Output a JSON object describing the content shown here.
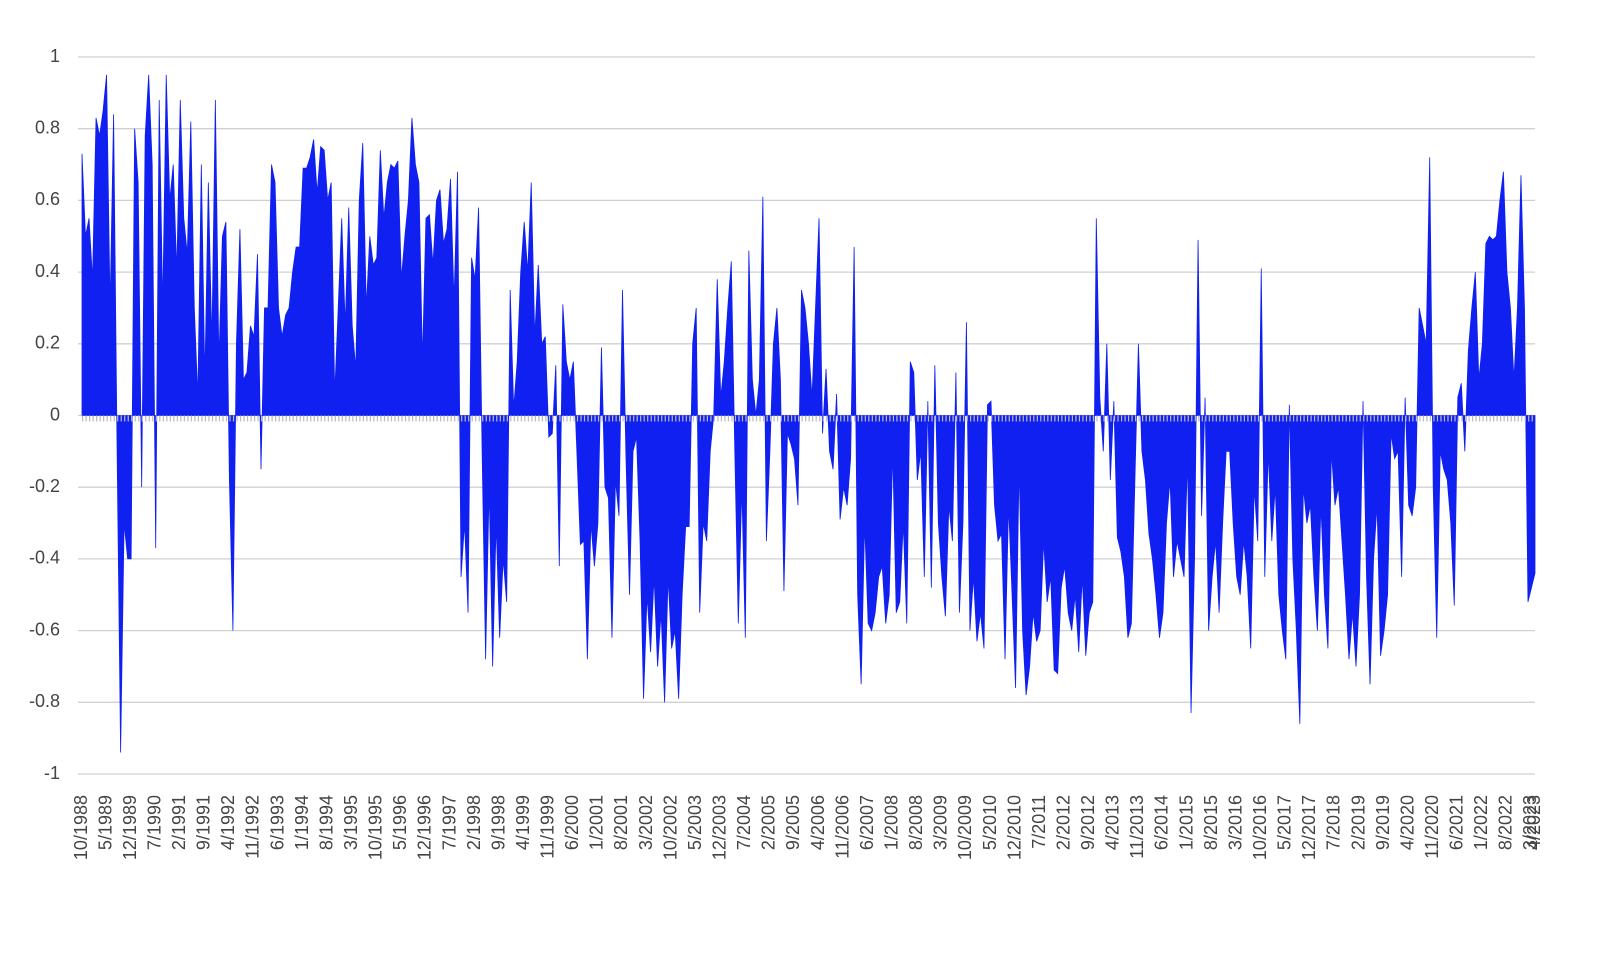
{
  "chart_data": {
    "type": "area",
    "color": "#1020f0",
    "grid": true,
    "ylim": [
      -1,
      1
    ],
    "yticks": [
      1,
      0.8,
      0.6,
      0.4,
      0.2,
      0,
      -0.2,
      -0.4,
      -0.6,
      -0.8,
      -1
    ],
    "categories": [
      "10/1988",
      null,
      null,
      null,
      null,
      null,
      null,
      "5/1989",
      null,
      null,
      null,
      null,
      null,
      null,
      "12/1989",
      null,
      null,
      null,
      null,
      null,
      null,
      "7/1990",
      null,
      null,
      null,
      null,
      null,
      null,
      "2/1991",
      null,
      null,
      null,
      null,
      null,
      null,
      "9/1991",
      null,
      null,
      null,
      null,
      null,
      null,
      "4/1992",
      null,
      null,
      null,
      null,
      null,
      null,
      "11/1992",
      null,
      null,
      null,
      null,
      null,
      null,
      "6/1993",
      null,
      null,
      null,
      null,
      null,
      null,
      "1/1994",
      null,
      null,
      null,
      null,
      null,
      null,
      "8/1994",
      null,
      null,
      null,
      null,
      null,
      null,
      "3/1995",
      null,
      null,
      null,
      null,
      null,
      null,
      "10/1995",
      null,
      null,
      null,
      null,
      null,
      null,
      "5/1996",
      null,
      null,
      null,
      null,
      null,
      null,
      "12/1996",
      null,
      null,
      null,
      null,
      null,
      null,
      "7/1997",
      null,
      null,
      null,
      null,
      null,
      null,
      "2/1998",
      null,
      null,
      null,
      null,
      null,
      null,
      "9/1998",
      null,
      null,
      null,
      null,
      null,
      null,
      "4/1999",
      null,
      null,
      null,
      null,
      null,
      null,
      "11/1999",
      null,
      null,
      null,
      null,
      null,
      null,
      "6/2000",
      null,
      null,
      null,
      null,
      null,
      null,
      "1/2001",
      null,
      null,
      null,
      null,
      null,
      null,
      "8/2001",
      null,
      null,
      null,
      null,
      null,
      null,
      "3/2002",
      null,
      null,
      null,
      null,
      null,
      null,
      "10/2002",
      null,
      null,
      null,
      null,
      null,
      null,
      "5/2003",
      null,
      null,
      null,
      null,
      null,
      null,
      "12/2003",
      null,
      null,
      null,
      null,
      null,
      null,
      "7/2004",
      null,
      null,
      null,
      null,
      null,
      null,
      "2/2005",
      null,
      null,
      null,
      null,
      null,
      null,
      "9/2005",
      null,
      null,
      null,
      null,
      null,
      null,
      "4/2006",
      null,
      null,
      null,
      null,
      null,
      null,
      "11/2006",
      null,
      null,
      null,
      null,
      null,
      null,
      "6/2007",
      null,
      null,
      null,
      null,
      null,
      null,
      "1/2008",
      null,
      null,
      null,
      null,
      null,
      null,
      "8/2008",
      null,
      null,
      null,
      null,
      null,
      null,
      "3/2009",
      null,
      null,
      null,
      null,
      null,
      null,
      "10/2009",
      null,
      null,
      null,
      null,
      null,
      null,
      "5/2010",
      null,
      null,
      null,
      null,
      null,
      null,
      "12/2010",
      null,
      null,
      null,
      null,
      null,
      null,
      "7/2011",
      null,
      null,
      null,
      null,
      null,
      null,
      "2/2012",
      null,
      null,
      null,
      null,
      null,
      null,
      "9/2012",
      null,
      null,
      null,
      null,
      null,
      null,
      "4/2013",
      null,
      null,
      null,
      null,
      null,
      null,
      "11/2013",
      null,
      null,
      null,
      null,
      null,
      null,
      "6/2014",
      null,
      null,
      null,
      null,
      null,
      null,
      "1/2015",
      null,
      null,
      null,
      null,
      null,
      null,
      "8/2015",
      null,
      null,
      null,
      null,
      null,
      null,
      "3/2016",
      null,
      null,
      null,
      null,
      null,
      null,
      "10/2016",
      null,
      null,
      null,
      null,
      null,
      null,
      "5/2017",
      null,
      null,
      null,
      null,
      null,
      null,
      "12/2017",
      null,
      null,
      null,
      null,
      null,
      null,
      "7/2018",
      null,
      null,
      null,
      null,
      null,
      null,
      "2/2019",
      null,
      null,
      null,
      null,
      null,
      null,
      "9/2019",
      null,
      null,
      null,
      null,
      null,
      null,
      "4/2020",
      null,
      null,
      null,
      null,
      null,
      null,
      "11/2020",
      null,
      null,
      null,
      null,
      null,
      null,
      "6/2021",
      null,
      null,
      null,
      null,
      null,
      null,
      "1/2022",
      null,
      null,
      null,
      null,
      null,
      null,
      "8/2022",
      null,
      null,
      null,
      null,
      null,
      null,
      "3/2023",
      "4/2023"
    ],
    "values": [
      0.73,
      0.5,
      0.55,
      0.38,
      0.83,
      0.78,
      0.85,
      0.95,
      0.3,
      0.84,
      -0.1,
      -0.94,
      -0.3,
      -0.4,
      -0.4,
      0.8,
      0.65,
      -0.2,
      0.78,
      0.95,
      0.7,
      -0.37,
      0.88,
      0.3,
      0.95,
      0.6,
      0.7,
      0.4,
      0.88,
      0.55,
      0.45,
      0.82,
      0.3,
      0.05,
      0.7,
      0.1,
      0.65,
      0.2,
      0.88,
      0.15,
      0.5,
      0.54,
      -0.18,
      -0.6,
      0.2,
      0.52,
      0.1,
      0.12,
      0.25,
      0.22,
      0.45,
      -0.15,
      0.3,
      0.3,
      0.7,
      0.65,
      0.3,
      0.22,
      0.28,
      0.3,
      0.4,
      0.47,
      0.47,
      0.69,
      0.69,
      0.72,
      0.77,
      0.62,
      0.75,
      0.74,
      0.6,
      0.65,
      0.06,
      0.3,
      0.55,
      0.25,
      0.58,
      0.25,
      0.13,
      0.6,
      0.76,
      0.3,
      0.5,
      0.42,
      0.44,
      0.74,
      0.55,
      0.65,
      0.7,
      0.69,
      0.71,
      0.38,
      0.5,
      0.6,
      0.83,
      0.7,
      0.65,
      0.15,
      0.55,
      0.56,
      0.42,
      0.6,
      0.63,
      0.48,
      0.52,
      0.66,
      0.32,
      0.68,
      -0.45,
      -0.3,
      -0.55,
      0.44,
      0.38,
      0.58,
      -0.1,
      -0.68,
      -0.2,
      -0.7,
      -0.3,
      -0.62,
      -0.4,
      -0.52,
      0.35,
      0.02,
      0.15,
      0.4,
      0.54,
      0.4,
      0.65,
      0.22,
      0.42,
      0.2,
      0.22,
      -0.06,
      -0.05,
      0.14,
      -0.42,
      0.31,
      0.15,
      0.1,
      0.15,
      -0.1,
      -0.36,
      -0.35,
      -0.68,
      -0.3,
      -0.42,
      -0.3,
      0.19,
      -0.2,
      -0.23,
      -0.62,
      -0.18,
      -0.28,
      0.35,
      -0.12,
      -0.5,
      -0.1,
      -0.06,
      -0.35,
      -0.79,
      -0.5,
      -0.66,
      -0.45,
      -0.7,
      -0.55,
      -0.8,
      -0.45,
      -0.65,
      -0.6,
      -0.79,
      -0.5,
      -0.31,
      -0.31,
      0.2,
      0.3,
      -0.55,
      -0.3,
      -0.35,
      -0.1,
      0.0,
      0.38,
      0.05,
      0.15,
      0.3,
      0.43,
      -0.1,
      -0.58,
      -0.2,
      -0.62,
      0.46,
      0.1,
      0.0,
      0.1,
      0.61,
      -0.35,
      -0.1,
      0.2,
      0.3,
      0.1,
      -0.49,
      -0.05,
      -0.08,
      -0.12,
      -0.25,
      0.35,
      0.3,
      0.2,
      0.05,
      0.3,
      0.55,
      -0.05,
      0.13,
      -0.1,
      -0.15,
      0.06,
      -0.29,
      -0.2,
      -0.25,
      -0.12,
      0.47,
      -0.5,
      -0.75,
      -0.3,
      -0.58,
      -0.6,
      -0.55,
      -0.45,
      -0.42,
      -0.58,
      -0.5,
      -0.1,
      -0.55,
      -0.52,
      -0.3,
      -0.58,
      0.15,
      0.12,
      -0.18,
      -0.1,
      -0.45,
      0.04,
      -0.48,
      0.14,
      -0.3,
      -0.45,
      -0.56,
      -0.25,
      -0.35,
      0.12,
      -0.55,
      -0.3,
      0.26,
      -0.6,
      -0.45,
      -0.63,
      -0.55,
      -0.65,
      0.03,
      0.04,
      -0.25,
      -0.35,
      -0.33,
      -0.68,
      -0.25,
      -0.5,
      -0.76,
      -0.14,
      -0.6,
      -0.78,
      -0.7,
      -0.55,
      -0.63,
      -0.6,
      -0.35,
      -0.52,
      -0.45,
      -0.71,
      -0.72,
      -0.48,
      -0.42,
      -0.55,
      -0.6,
      -0.5,
      -0.66,
      -0.45,
      -0.67,
      -0.55,
      -0.52,
      0.55,
      0.05,
      -0.1,
      0.2,
      -0.18,
      0.04,
      -0.34,
      -0.38,
      -0.45,
      -0.62,
      -0.58,
      -0.18,
      0.2,
      -0.1,
      -0.18,
      -0.33,
      -0.4,
      -0.5,
      -0.62,
      -0.55,
      -0.3,
      -0.18,
      -0.45,
      -0.35,
      -0.4,
      -0.45,
      -0.12,
      -0.83,
      -0.4,
      0.49,
      -0.28,
      0.05,
      -0.6,
      -0.45,
      -0.35,
      -0.55,
      -0.3,
      -0.1,
      -0.1,
      -0.3,
      -0.45,
      -0.5,
      -0.35,
      -0.45,
      -0.65,
      -0.2,
      -0.35,
      0.41,
      -0.45,
      -0.1,
      -0.35,
      -0.2,
      -0.5,
      -0.6,
      -0.68,
      0.03,
      -0.4,
      -0.6,
      -0.86,
      -0.2,
      -0.3,
      -0.25,
      -0.45,
      -0.6,
      -0.25,
      -0.5,
      -0.65,
      -0.1,
      -0.25,
      -0.2,
      -0.35,
      -0.5,
      -0.68,
      -0.55,
      -0.7,
      -0.5,
      0.04,
      -0.45,
      -0.75,
      -0.4,
      -0.25,
      -0.67,
      -0.6,
      -0.5,
      -0.05,
      -0.12,
      -0.1,
      -0.45,
      0.05,
      -0.25,
      -0.28,
      -0.2,
      0.3,
      0.25,
      0.2,
      0.72,
      -0.2,
      -0.62,
      -0.1,
      -0.15,
      -0.18,
      -0.3,
      -0.53,
      0.05,
      0.09,
      -0.1,
      0.18,
      0.3,
      0.4,
      0.1,
      0.2,
      0.48,
      0.5,
      0.49,
      0.5,
      0.6,
      0.68,
      0.4,
      0.3,
      0.1,
      0.3,
      0.67,
      0.3,
      -0.52,
      -0.48,
      -0.44
    ]
  }
}
